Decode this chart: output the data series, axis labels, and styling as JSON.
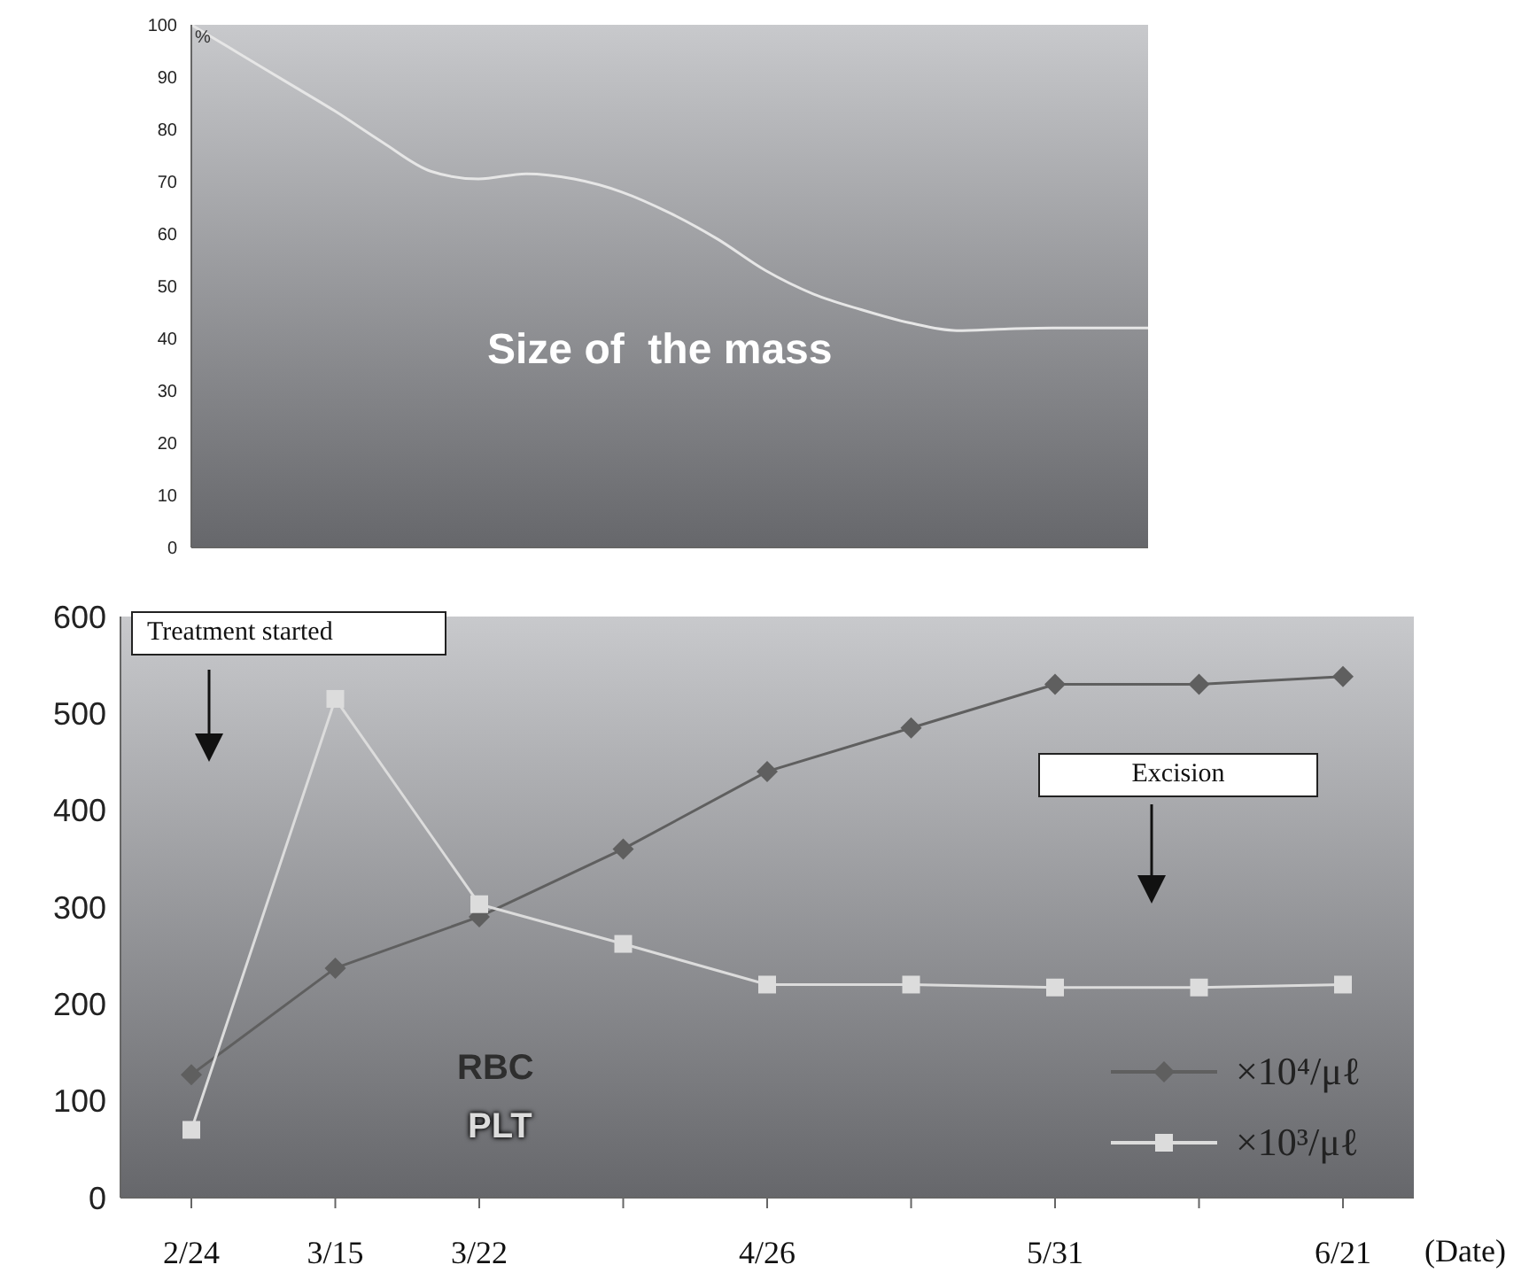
{
  "chart_data": [
    {
      "type": "line",
      "ylabel": "%",
      "categories": [
        null,
        null,
        null,
        null,
        null,
        null,
        null,
        null,
        null,
        null,
        null,
        null,
        null,
        null,
        null,
        null,
        null,
        null,
        null,
        null,
        null
      ],
      "series": [
        {
          "color": "#e6e6e6",
          "values": [
            100,
            94.5,
            89,
            83.5,
            77.5,
            72,
            70.5,
            71.5,
            70.5,
            68,
            64,
            59,
            53,
            48.5,
            45.5,
            43,
            41.5,
            41.8,
            42,
            42,
            42
          ]
        }
      ],
      "annotations": [
        "Size of  the mass"
      ],
      "ylim": [
        0,
        100
      ],
      "yticks": [
        0,
        10,
        20,
        30,
        40,
        50,
        60,
        70,
        80,
        90,
        100
      ],
      "grid": false,
      "marker": "none",
      "tick_labels": "y"
    },
    {
      "type": "line",
      "xlabel": "(Date)",
      "categories": [
        "2/24",
        "3/15",
        "3/22",
        null,
        "4/26",
        null,
        "5/31",
        null,
        "6/21"
      ],
      "series": [
        {
          "name": "×10⁴/μℓ",
          "color": "#5f5f5f",
          "marker": "diamond",
          "values": [
            127,
            237,
            290,
            360,
            440,
            485,
            530,
            530,
            538
          ]
        },
        {
          "name": "×10³/μℓ",
          "color": "#dcdcdc",
          "marker": "square",
          "values": [
            70,
            515,
            303,
            262,
            220,
            220,
            217,
            217,
            220
          ]
        }
      ],
      "annotations": [
        "Treatment started",
        "Excision",
        "RBC",
        "PLT"
      ],
      "ylim": [
        0,
        600
      ],
      "yticks": [
        0,
        100,
        200,
        300,
        400,
        500,
        600
      ],
      "grid": false,
      "legend": "bottom right"
    }
  ]
}
